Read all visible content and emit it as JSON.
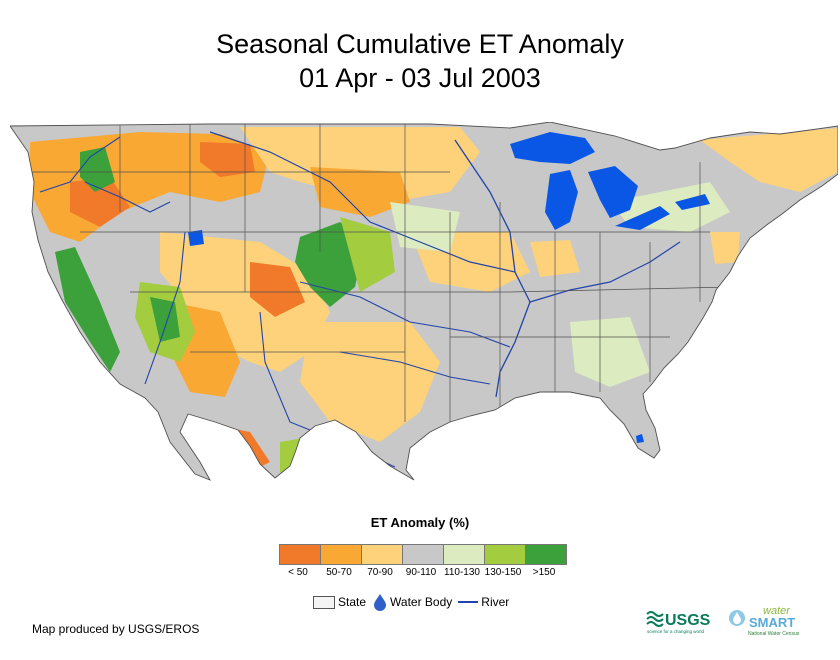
{
  "title_line1": "Seasonal Cumulative ET Anomaly",
  "title_line2": "01 Apr - 03 Jul 2003",
  "legend": {
    "title": "ET Anomaly (%)",
    "bins": [
      {
        "label": "< 50",
        "color": "#f07a2a"
      },
      {
        "label": "50-70",
        "color": "#f9a833"
      },
      {
        "label": "70-90",
        "color": "#fdd27a"
      },
      {
        "label": "90-110",
        "color": "#c8c8c8"
      },
      {
        "label": "110-130",
        "color": "#dcebc0"
      },
      {
        "label": "130-150",
        "color": "#a3cc3f"
      },
      {
        "label": ">150",
        "color": "#3ca13a"
      }
    ],
    "layers": {
      "state": "State",
      "water": "Water Body",
      "river": "River"
    }
  },
  "credit": "Map produced by USGS/EROS",
  "logos": {
    "usgs": "USGS",
    "usgs_tagline": "science for a changing world",
    "water": "water",
    "smart": "SMART",
    "census": "National Water Census"
  },
  "colors": {
    "water": "#0a57e6",
    "river": "#2244aa",
    "state_border": "#505050"
  }
}
